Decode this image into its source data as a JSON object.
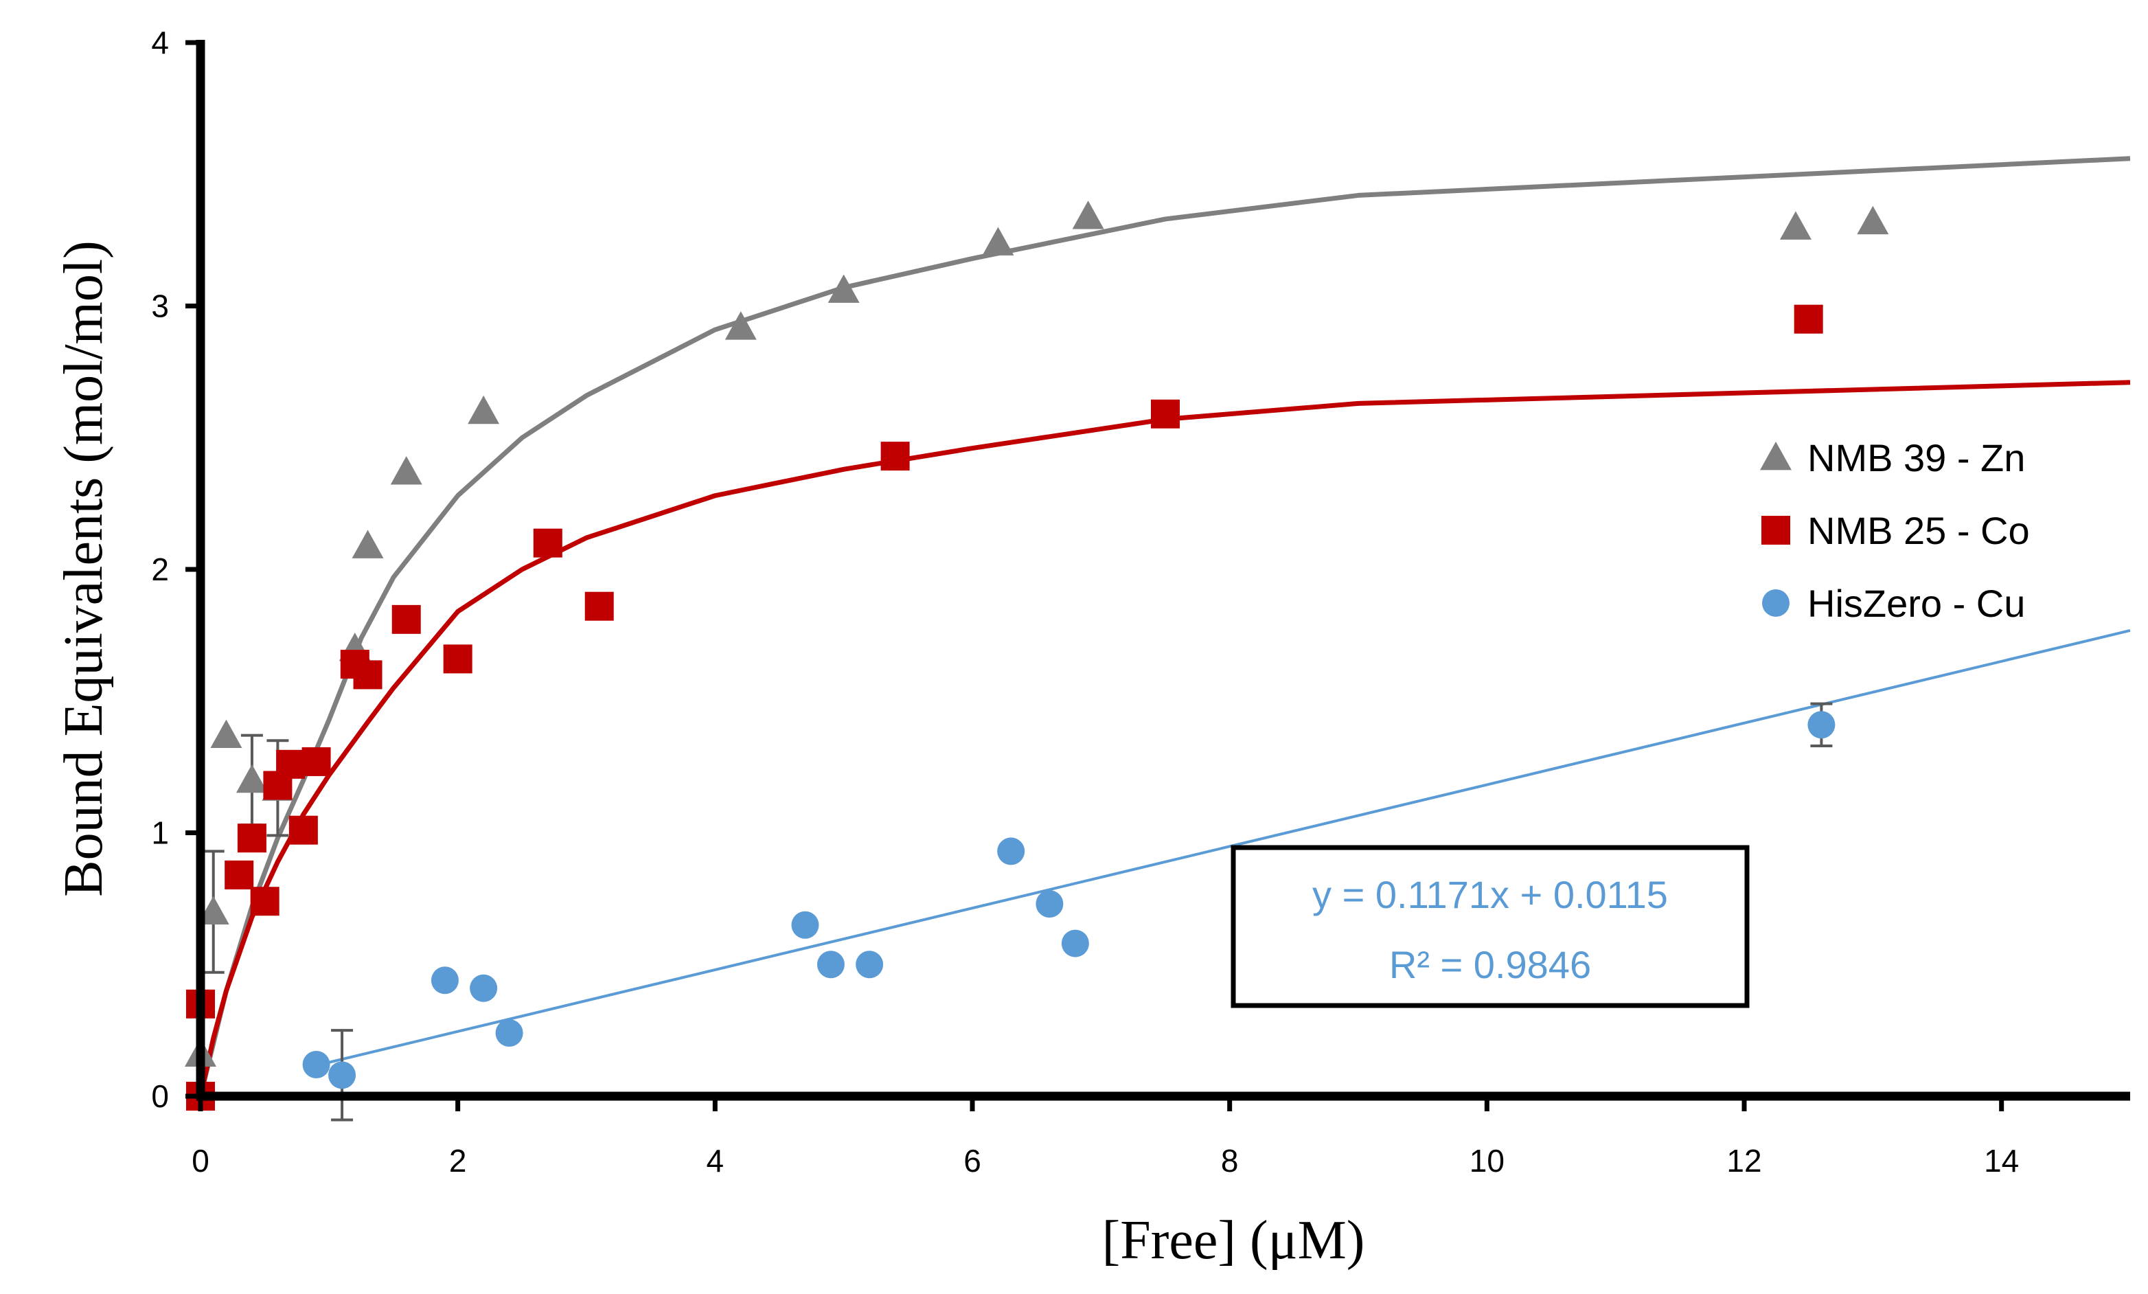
{
  "chart_data": {
    "type": "scatter",
    "xlabel": "[Free] (μM)",
    "ylabel": "Bound Equivalents (mol/mol)",
    "xlim": [
      0,
      15
    ],
    "ylim": [
      0,
      4
    ],
    "x_ticks": [
      "0",
      "2",
      "4",
      "6",
      "8",
      "10",
      "12",
      "14"
    ],
    "y_ticks": [
      "0",
      "1",
      "2",
      "3",
      "4"
    ],
    "legend_position": "right",
    "series": [
      {
        "name": "NMB 39 - Zn",
        "marker": "triangle",
        "color": "#7f7f7f",
        "points": [
          {
            "x": 0.0,
            "y": 0.16
          },
          {
            "x": 0.1,
            "y": 0.7
          },
          {
            "x": 0.2,
            "y": 1.37
          },
          {
            "x": 0.4,
            "y": 1.2
          },
          {
            "x": 0.6,
            "y": 1.17
          },
          {
            "x": 1.2,
            "y": 1.7
          },
          {
            "x": 1.3,
            "y": 2.09
          },
          {
            "x": 1.6,
            "y": 2.37
          },
          {
            "x": 2.2,
            "y": 2.6
          },
          {
            "x": 4.2,
            "y": 2.92
          },
          {
            "x": 5.0,
            "y": 3.06
          },
          {
            "x": 6.2,
            "y": 3.24
          },
          {
            "x": 6.9,
            "y": 3.34
          },
          {
            "x": 12.4,
            "y": 3.3
          },
          {
            "x": 13.0,
            "y": 3.32
          }
        ],
        "error_bars": [
          {
            "x": 0.1,
            "y": 0.7,
            "err": 0.23
          },
          {
            "x": 0.4,
            "y": 1.2,
            "err": 0.17
          },
          {
            "x": 0.6,
            "y": 1.17,
            "err": 0.18
          }
        ],
        "fit": {
          "kind": "binding curve",
          "points": [
            {
              "x": 0.0,
              "y": 0.0
            },
            {
              "x": 0.2,
              "y": 0.4
            },
            {
              "x": 0.4,
              "y": 0.72
            },
            {
              "x": 0.6,
              "y": 0.98
            },
            {
              "x": 0.8,
              "y": 1.2
            },
            {
              "x": 1.0,
              "y": 1.43
            },
            {
              "x": 1.25,
              "y": 1.74
            },
            {
              "x": 1.5,
              "y": 1.97
            },
            {
              "x": 2.0,
              "y": 2.28
            },
            {
              "x": 2.5,
              "y": 2.5
            },
            {
              "x": 3.0,
              "y": 2.66
            },
            {
              "x": 4.0,
              "y": 2.91
            },
            {
              "x": 5.0,
              "y": 3.07
            },
            {
              "x": 6.0,
              "y": 3.18
            },
            {
              "x": 7.5,
              "y": 3.33
            },
            {
              "x": 9.0,
              "y": 3.42
            },
            {
              "x": 12.0,
              "y": 3.49
            },
            {
              "x": 15.0,
              "y": 3.56
            }
          ]
        }
      },
      {
        "name": "NMB 25 - Co",
        "marker": "square",
        "color": "#c00000",
        "points": [
          {
            "x": 0.0,
            "y": 0.0
          },
          {
            "x": 0.0,
            "y": 0.35
          },
          {
            "x": 0.3,
            "y": 0.84
          },
          {
            "x": 0.4,
            "y": 0.98
          },
          {
            "x": 0.5,
            "y": 0.74
          },
          {
            "x": 0.6,
            "y": 1.18
          },
          {
            "x": 0.7,
            "y": 1.26
          },
          {
            "x": 0.8,
            "y": 1.01
          },
          {
            "x": 0.9,
            "y": 1.27
          },
          {
            "x": 1.2,
            "y": 1.64
          },
          {
            "x": 1.3,
            "y": 1.6
          },
          {
            "x": 1.6,
            "y": 1.81
          },
          {
            "x": 2.0,
            "y": 1.66
          },
          {
            "x": 2.7,
            "y": 2.1
          },
          {
            "x": 3.1,
            "y": 1.86
          },
          {
            "x": 5.4,
            "y": 2.43
          },
          {
            "x": 7.5,
            "y": 2.59
          },
          {
            "x": 12.5,
            "y": 2.95
          }
        ],
        "error_bars": [],
        "fit": {
          "kind": "binding curve",
          "points": [
            {
              "x": 0.0,
              "y": 0.0
            },
            {
              "x": 0.1,
              "y": 0.22
            },
            {
              "x": 0.2,
              "y": 0.4
            },
            {
              "x": 0.4,
              "y": 0.68
            },
            {
              "x": 0.6,
              "y": 0.89
            },
            {
              "x": 0.8,
              "y": 1.07
            },
            {
              "x": 1.0,
              "y": 1.22
            },
            {
              "x": 1.3,
              "y": 1.42
            },
            {
              "x": 1.5,
              "y": 1.55
            },
            {
              "x": 2.0,
              "y": 1.84
            },
            {
              "x": 2.5,
              "y": 2.0
            },
            {
              "x": 3.0,
              "y": 2.12
            },
            {
              "x": 4.0,
              "y": 2.28
            },
            {
              "x": 5.0,
              "y": 2.38
            },
            {
              "x": 6.0,
              "y": 2.46
            },
            {
              "x": 7.5,
              "y": 2.57
            },
            {
              "x": 9.0,
              "y": 2.63
            },
            {
              "x": 12.0,
              "y": 2.67
            },
            {
              "x": 15.0,
              "y": 2.71
            }
          ]
        }
      },
      {
        "name": "HisZero - Cu",
        "marker": "circle",
        "color": "#5b9bd5",
        "points": [
          {
            "x": 0.9,
            "y": 0.12
          },
          {
            "x": 1.1,
            "y": 0.08
          },
          {
            "x": 1.9,
            "y": 0.44
          },
          {
            "x": 2.2,
            "y": 0.41
          },
          {
            "x": 2.4,
            "y": 0.24
          },
          {
            "x": 4.7,
            "y": 0.65
          },
          {
            "x": 4.9,
            "y": 0.5
          },
          {
            "x": 5.2,
            "y": 0.5
          },
          {
            "x": 6.3,
            "y": 0.93
          },
          {
            "x": 6.6,
            "y": 0.73
          },
          {
            "x": 6.8,
            "y": 0.58
          },
          {
            "x": 12.6,
            "y": 1.41
          }
        ],
        "error_bars": [
          {
            "x": 1.1,
            "y": 0.08,
            "err": 0.17
          },
          {
            "x": 12.6,
            "y": 1.41,
            "err": 0.08
          }
        ],
        "fit": {
          "kind": "linear",
          "slope": 0.1171,
          "intercept": 0.0115,
          "x_range": [
            1.0,
            15.0
          ]
        }
      }
    ],
    "trendline_label": {
      "equation": "y = 0.1171x + 0.0115",
      "r_squared": "R² = 0.9846",
      "box": true
    }
  }
}
